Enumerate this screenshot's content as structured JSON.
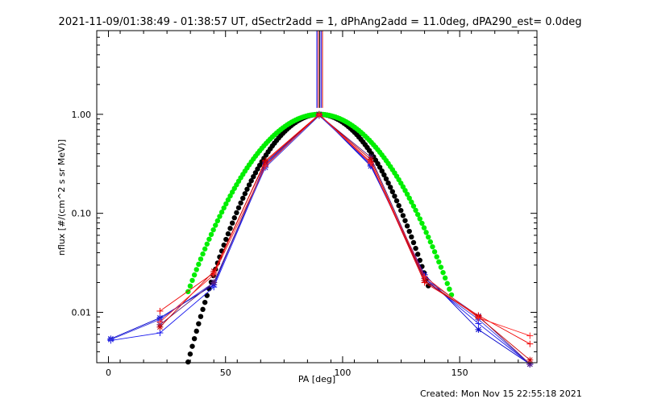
{
  "chart_data": {
    "type": "line",
    "title": "2021-11-09/01:38:49 - 01:38:57 UT, dSectr2add = 1, dPhAng2add = 11.0deg, dPA290_est=  0.0deg",
    "xlabel": "PA [deg]",
    "ylabel": "nflux [#/(cm^2 s sr MeV)]",
    "xlim": [
      -5,
      183
    ],
    "ylim": [
      0.0031,
      7.0
    ],
    "yscale": "log",
    "xticks": [
      0,
      50,
      100,
      150
    ],
    "yticks": [
      0.01,
      0.1,
      1.0
    ],
    "xtick_labels": [
      "0",
      "50",
      "100",
      "150"
    ],
    "ytick_labels": [
      "0.01",
      "0.10",
      "1.00"
    ],
    "series": [
      {
        "color": "#0000cc",
        "marker": "star",
        "x": [
          1,
          22,
          45,
          67,
          90,
          112,
          135,
          158,
          180
        ],
        "y": [
          0.0054,
          0.0088,
          0.019,
          0.32,
          1.0,
          0.3,
          0.024,
          0.0067,
          0.003
        ]
      },
      {
        "color": "#1a1aee",
        "marker": "plus",
        "x": [
          1,
          22,
          45,
          67,
          90,
          112,
          135,
          158,
          180
        ],
        "y": [
          0.0052,
          0.0062,
          0.018,
          0.3,
          1.0,
          0.31,
          0.022,
          0.0077,
          0.003
        ]
      },
      {
        "color": "#3333dd",
        "marker": "star",
        "x": [
          1,
          22,
          45,
          67,
          90,
          112,
          135,
          158,
          180
        ],
        "y": [
          0.0053,
          0.0085,
          0.02,
          0.29,
          0.97,
          0.32,
          0.021,
          0.0085,
          0.003
        ]
      },
      {
        "color": "#5a1a7a",
        "marker": "star",
        "x": [
          22,
          45,
          67,
          90,
          112,
          135,
          158,
          180
        ],
        "y": [
          0.0075,
          0.02,
          0.31,
          0.98,
          0.37,
          0.022,
          0.0092,
          0.003
        ]
      },
      {
        "color": "#ee0000",
        "marker": "plus",
        "x": [
          22,
          45,
          67,
          90,
          112,
          135,
          158,
          180
        ],
        "y": [
          0.0103,
          0.025,
          0.34,
          1.0,
          0.33,
          0.02,
          0.0093,
          0.0048
        ]
      },
      {
        "color": "#cc0000",
        "marker": "star",
        "x": [
          22,
          45,
          67,
          90,
          112,
          135,
          158,
          180
        ],
        "y": [
          0.0071,
          0.026,
          0.33,
          0.99,
          0.35,
          0.021,
          0.009,
          0.0033
        ]
      },
      {
        "color": "#ff2222",
        "marker": "plus",
        "x": [
          22,
          45,
          67,
          90,
          112,
          135,
          158,
          180
        ],
        "y": [
          0.008,
          0.024,
          0.3,
          1.0,
          0.32,
          0.023,
          0.0088,
          0.0058
        ]
      }
    ],
    "fits": [
      {
        "color": "#000000",
        "style": "dots",
        "x_range": [
          34,
          137
        ],
        "center": 90,
        "width_deg": 16.5
      },
      {
        "color": "#00ee00",
        "style": "dots",
        "x_range": [
          34,
          147
        ],
        "center": 90,
        "width_deg": 19.5
      }
    ],
    "spikes": [
      {
        "color": "#0000ff",
        "x": 89.0
      },
      {
        "color": "#cc0000",
        "x": 89.6
      },
      {
        "color": "#000000",
        "x": 90.2
      },
      {
        "color": "#0000ff",
        "x": 90.8
      },
      {
        "color": "#cc0000",
        "x": 91.4
      }
    ]
  },
  "footer": "Created: Mon Nov 15 22:55:18 2021"
}
